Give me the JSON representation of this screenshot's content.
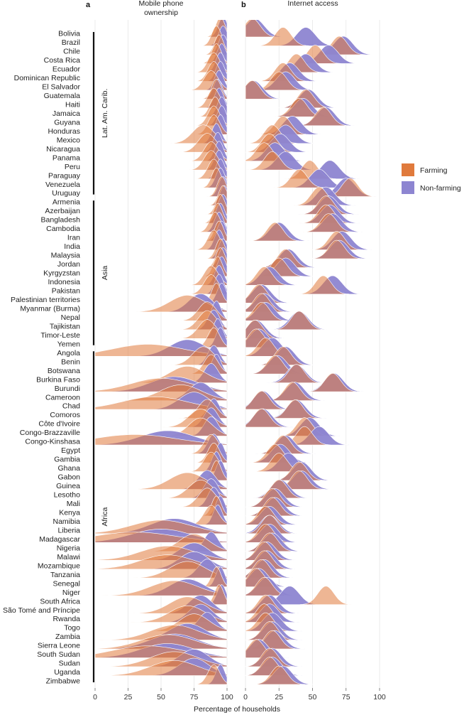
{
  "colors": {
    "farming": "#e07a3c",
    "non_farming": "#8d85d1",
    "overlap": "#6d3a73"
  },
  "chart_data": {
    "type": "ridgeline",
    "title": "",
    "xlabel": "Percentage of households",
    "xlim": [
      0,
      100
    ],
    "xticks": [
      "0",
      "25",
      "50",
      "75",
      "100"
    ],
    "panels": [
      {
        "letter": "a",
        "title_lines": [
          "Mobile phone",
          "ownership"
        ]
      },
      {
        "letter": "b",
        "title_lines": [
          "Internet access"
        ]
      }
    ],
    "legend": {
      "position": "right",
      "entries": [
        "Farming",
        "Non-farming"
      ]
    },
    "regions": [
      {
        "label": "Lat. Am. Carib.",
        "first": 0,
        "last": 18
      },
      {
        "label": "Asia",
        "first": 19,
        "last": 35
      },
      {
        "label": "Africa",
        "first": 36,
        "last": 73
      }
    ],
    "countries": [
      {
        "name": "Bolivia",
        "mobile": [
          95,
          97
        ],
        "internet": [
          5,
          7
        ]
      },
      {
        "name": "Brazil",
        "mobile": [
          92,
          97
        ],
        "internet": [
          28,
          45
        ]
      },
      {
        "name": "Chile",
        "mobile": [
          94,
          97
        ],
        "internet": [
          70,
          73
        ]
      },
      {
        "name": "Costa Rica",
        "mobile": [
          92,
          96
        ],
        "internet": [
          52,
          62
        ]
      },
      {
        "name": "Ecuador",
        "mobile": [
          90,
          95
        ],
        "internet": [
          38,
          45
        ]
      },
      {
        "name": "Dominican Republic",
        "mobile": [
          90,
          95
        ],
        "internet": [
          28,
          33
        ]
      },
      {
        "name": "El Salvador",
        "mobile": [
          88,
          94
        ],
        "internet": [
          25,
          30
        ]
      },
      {
        "name": "Guatemala",
        "mobile": [
          92,
          93
        ],
        "internet": [
          5,
          6
        ]
      },
      {
        "name": "Haiti",
        "mobile": [
          90,
          94
        ],
        "internet": [
          45,
          47
        ]
      },
      {
        "name": "Jamaica",
        "mobile": [
          91,
          96
        ],
        "internet": [
          40,
          43
        ]
      },
      {
        "name": "Guyana",
        "mobile": [
          90,
          96
        ],
        "internet": [
          58,
          60
        ]
      },
      {
        "name": "Honduras",
        "mobile": [
          90,
          95
        ],
        "internet": [
          28,
          35
        ]
      },
      {
        "name": "Mexico",
        "mobile": [
          82,
          92
        ],
        "internet": [
          20,
          30
        ]
      },
      {
        "name": "Nicaragua",
        "mobile": [
          85,
          93
        ],
        "internet": [
          18,
          26
        ]
      },
      {
        "name": "Panama",
        "mobile": [
          88,
          94
        ],
        "internet": [
          14,
          22
        ]
      },
      {
        "name": "Peru",
        "mobile": [
          88,
          94
        ],
        "internet": [
          20,
          30
        ]
      },
      {
        "name": "Paraguay",
        "mobile": [
          90,
          95
        ],
        "internet": [
          48,
          63
        ]
      },
      {
        "name": "Venezuela",
        "mobile": [
          92,
          95
        ],
        "internet": [
          40,
          55
        ]
      },
      {
        "name": "Uruguay",
        "mobile": [
          96,
          97
        ],
        "internet": [
          78,
          75
        ]
      },
      {
        "name": "Armenia",
        "mobile": [
          97,
          98
        ],
        "internet": [
          55,
          60
        ]
      },
      {
        "name": "Azerbaijan",
        "mobile": [
          95,
          97
        ],
        "internet": [
          60,
          62
        ]
      },
      {
        "name": "Bangladesh",
        "mobile": [
          93,
          95
        ],
        "internet": [
          60,
          63
        ]
      },
      {
        "name": "Cambodia",
        "mobile": [
          91,
          94
        ],
        "internet": [
          62,
          65
        ]
      },
      {
        "name": "Iran",
        "mobile": [
          94,
          96
        ],
        "internet": [
          22,
          25
        ]
      },
      {
        "name": "India",
        "mobile": [
          90,
          94
        ],
        "internet": [
          68,
          72
        ]
      },
      {
        "name": "Malaysia",
        "mobile": [
          95,
          97
        ],
        "internet": [
          68,
          70
        ]
      },
      {
        "name": "Jordan",
        "mobile": [
          95,
          97
        ],
        "internet": [
          30,
          32
        ]
      },
      {
        "name": "Kyrgyzstan",
        "mobile": [
          93,
          96
        ],
        "internet": [
          25,
          30
        ]
      },
      {
        "name": "Indonesia",
        "mobile": [
          88,
          94
        ],
        "internet": [
          14,
          18
        ]
      },
      {
        "name": "Pakistan",
        "mobile": [
          88,
          94
        ],
        "internet": [
          58,
          65
        ]
      },
      {
        "name": "Palestinian territories",
        "mobile": [
          92,
          96
        ],
        "internet": [
          10,
          12
        ]
      },
      {
        "name": "Myanmar (Burma)",
        "mobile": [
          70,
          80
        ],
        "internet": [
          12,
          14
        ]
      },
      {
        "name": "Nepal",
        "mobile": [
          85,
          92
        ],
        "internet": [
          12,
          15
        ]
      },
      {
        "name": "Tajikistan",
        "mobile": [
          85,
          90
        ],
        "internet": [
          40,
          40
        ]
      },
      {
        "name": "Timor-Leste",
        "mobile": [
          85,
          93
        ],
        "internet": [
          7,
          8
        ]
      },
      {
        "name": "Yemen",
        "mobile": [
          90,
          95
        ],
        "internet": [
          8,
          10
        ]
      },
      {
        "name": "Angola",
        "mobile": [
          40,
          70
        ],
        "internet": [
          15,
          20
        ]
      },
      {
        "name": "Benin",
        "mobile": [
          82,
          90
        ],
        "internet": [
          28,
          30
        ]
      },
      {
        "name": "Botswana",
        "mobile": [
          88,
          92
        ],
        "internet": [
          22,
          24
        ]
      },
      {
        "name": "Burkina Faso",
        "mobile": [
          70,
          88
        ],
        "internet": [
          38,
          38
        ]
      },
      {
        "name": "Burundi",
        "mobile": [
          50,
          60
        ],
        "internet": [
          65,
          66
        ]
      },
      {
        "name": "Cameroon",
        "mobile": [
          65,
          80
        ],
        "internet": [
          35,
          37
        ]
      },
      {
        "name": "Chad",
        "mobile": [
          45,
          75
        ],
        "internet": [
          12,
          13
        ]
      },
      {
        "name": "Comoros",
        "mobile": [
          85,
          90
        ],
        "internet": [
          37,
          38
        ]
      },
      {
        "name": "Côte d'Ivoire",
        "mobile": [
          80,
          88
        ],
        "internet": [
          12,
          13
        ]
      },
      {
        "name": "Congo-Brazzaville",
        "mobile": [
          80,
          88
        ],
        "internet": [
          44,
          48
        ]
      },
      {
        "name": "Congo-Kinshasa",
        "mobile": [
          30,
          55
        ],
        "internet": [
          44,
          55
        ]
      },
      {
        "name": "Egypt",
        "mobile": [
          88,
          90
        ],
        "internet": [
          28,
          30
        ]
      },
      {
        "name": "Gambia",
        "mobile": [
          90,
          95
        ],
        "internet": [
          22,
          26
        ]
      },
      {
        "name": "Ghana",
        "mobile": [
          88,
          92
        ],
        "internet": [
          25,
          32
        ]
      },
      {
        "name": "Gabon",
        "mobile": [
          92,
          95
        ],
        "internet": [
          40,
          42
        ]
      },
      {
        "name": "Guinea",
        "mobile": [
          70,
          85
        ],
        "internet": [
          40,
          42
        ]
      },
      {
        "name": "Lesotho",
        "mobile": [
          80,
          88
        ],
        "internet": [
          25,
          26
        ]
      },
      {
        "name": "Mali",
        "mobile": [
          85,
          90
        ],
        "internet": [
          20,
          22
        ]
      },
      {
        "name": "Kenya",
        "mobile": [
          92,
          95
        ],
        "internet": [
          20,
          22
        ]
      },
      {
        "name": "Namibia",
        "mobile": [
          88,
          93
        ],
        "internet": [
          15,
          18
        ]
      },
      {
        "name": "Liberia",
        "mobile": [
          50,
          60
        ],
        "internet": [
          18,
          18
        ]
      },
      {
        "name": "Madagascar",
        "mobile": [
          30,
          50
        ],
        "internet": [
          15,
          18
        ]
      },
      {
        "name": "Nigeria",
        "mobile": [
          75,
          88
        ],
        "internet": [
          18,
          20
        ]
      },
      {
        "name": "Malawi",
        "mobile": [
          55,
          75
        ],
        "internet": [
          14,
          16
        ]
      },
      {
        "name": "Mozambique",
        "mobile": [
          55,
          75
        ],
        "internet": [
          14,
          16
        ]
      },
      {
        "name": "Tanzania",
        "mobile": [
          70,
          85
        ],
        "internet": [
          12,
          14
        ]
      },
      {
        "name": "Senegal",
        "mobile": [
          92,
          95
        ],
        "internet": [
          8,
          10
        ]
      },
      {
        "name": "Niger",
        "mobile": [
          60,
          70
        ],
        "internet": [
          14,
          16
        ]
      },
      {
        "name": "South Africa",
        "mobile": [
          94,
          96
        ],
        "internet": [
          60,
          33
        ]
      },
      {
        "name": "São Tomé and Príncipe",
        "mobile": [
          70,
          80
        ],
        "internet": [
          15,
          18
        ]
      },
      {
        "name": "Rwanda",
        "mobile": [
          70,
          80
        ],
        "internet": [
          14,
          18
        ]
      },
      {
        "name": "Togo",
        "mobile": [
          75,
          85
        ],
        "internet": [
          15,
          20
        ]
      },
      {
        "name": "Zambia",
        "mobile": [
          60,
          70
        ],
        "internet": [
          18,
          20
        ]
      },
      {
        "name": "Sierra Leone",
        "mobile": [
          55,
          60
        ],
        "internet": [
          20,
          22
        ]
      },
      {
        "name": "South Sudan",
        "mobile": [
          40,
          55
        ],
        "internet": [
          8,
          10
        ]
      },
      {
        "name": "Sudan",
        "mobile": [
          60,
          75
        ],
        "internet": [
          18,
          20
        ]
      },
      {
        "name": "Uganda",
        "mobile": [
          60,
          75
        ],
        "internet": [
          18,
          20
        ]
      },
      {
        "name": "Zimbabwe",
        "mobile": [
          90,
          95
        ],
        "internet": [
          25,
          28
        ]
      }
    ]
  }
}
